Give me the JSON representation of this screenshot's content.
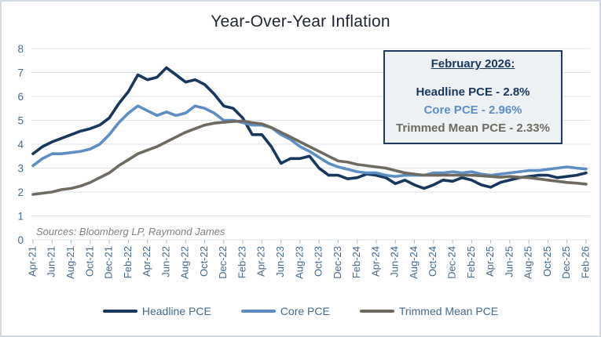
{
  "title": "Year-Over-Year Inflation",
  "sources": "Sources: Bloomberg LP, Raymond James",
  "annotation": {
    "heading": "February 2026:",
    "lines": [
      {
        "label": "Headline PCE - 2.8%",
        "color": "#17375e"
      },
      {
        "label": "Core PCE - 2.96%",
        "color": "#5b8ec4"
      },
      {
        "label": "Trimmed Mean PCE - 2.33%",
        "color": "#6e6a60"
      }
    ]
  },
  "colors": {
    "headline": "#17375e",
    "core": "#5b8ec4",
    "trimmed": "#6e6a60",
    "axis_text": "#44698c",
    "grid": "#dce3ea",
    "tick": "#aebccb",
    "title_text": "#1f2430",
    "sources_text": "#7f7f7f",
    "annotation_border": "#1f3a5f",
    "annotation_bg": "#eef1f3",
    "frame_border": "#d3d9e1"
  },
  "chart_data": {
    "type": "line",
    "title": "Year-Over-Year Inflation",
    "xlabel": "",
    "ylabel": "",
    "ylim": [
      0,
      8
    ],
    "yticks": [
      0,
      1,
      2,
      3,
      4,
      5,
      6,
      7,
      8
    ],
    "grid": true,
    "legend_position": "bottom",
    "x_tick_every": 2,
    "x": [
      "Apr-21",
      "May-21",
      "Jun-21",
      "Jul-21",
      "Aug-21",
      "Sep-21",
      "Oct-21",
      "Nov-21",
      "Dec-21",
      "Jan-22",
      "Feb-22",
      "Mar-22",
      "Apr-22",
      "May-22",
      "Jun-22",
      "Jul-22",
      "Aug-22",
      "Sep-22",
      "Oct-22",
      "Nov-22",
      "Dec-22",
      "Jan-23",
      "Feb-23",
      "Mar-23",
      "Apr-23",
      "May-23",
      "Jun-23",
      "Jul-23",
      "Aug-23",
      "Sep-23",
      "Oct-23",
      "Nov-23",
      "Dec-23",
      "Jan-24",
      "Feb-24",
      "Mar-24",
      "Apr-24",
      "May-24",
      "Jun-24",
      "Jul-24",
      "Aug-24",
      "Sep-24",
      "Oct-24",
      "Nov-24",
      "Dec-24",
      "Jan-25",
      "Feb-25",
      "Mar-25",
      "Apr-25",
      "May-25",
      "Jun-25",
      "Jul-25",
      "Aug-25",
      "Sep-25",
      "Oct-25",
      "Nov-25",
      "Dec-25",
      "Jan-26",
      "Feb-26"
    ],
    "series": [
      {
        "name": "Headline PCE",
        "color": "#17375e",
        "final_value_label": "2.8%",
        "values": [
          3.6,
          3.9,
          4.1,
          4.25,
          4.4,
          4.55,
          4.65,
          4.8,
          5.1,
          5.7,
          6.2,
          6.9,
          6.7,
          6.8,
          7.2,
          6.9,
          6.6,
          6.7,
          6.5,
          6.1,
          5.6,
          5.5,
          5.1,
          4.4,
          4.4,
          3.9,
          3.2,
          3.4,
          3.4,
          3.5,
          3.0,
          2.7,
          2.7,
          2.55,
          2.6,
          2.75,
          2.7,
          2.6,
          2.35,
          2.5,
          2.3,
          2.15,
          2.3,
          2.5,
          2.45,
          2.6,
          2.5,
          2.3,
          2.2,
          2.4,
          2.5,
          2.6,
          2.65,
          2.7,
          2.7,
          2.6,
          2.65,
          2.7,
          2.8
        ]
      },
      {
        "name": "Core PCE",
        "color": "#5b8ec4",
        "final_value_label": "2.96%",
        "values": [
          3.1,
          3.4,
          3.6,
          3.6,
          3.65,
          3.7,
          3.8,
          4.0,
          4.4,
          4.9,
          5.3,
          5.6,
          5.4,
          5.2,
          5.35,
          5.2,
          5.3,
          5.6,
          5.5,
          5.3,
          5.0,
          5.0,
          4.9,
          4.8,
          4.8,
          4.7,
          4.4,
          4.2,
          3.9,
          3.7,
          3.45,
          3.2,
          3.05,
          2.95,
          2.85,
          2.8,
          2.8,
          2.7,
          2.65,
          2.7,
          2.7,
          2.7,
          2.8,
          2.8,
          2.85,
          2.8,
          2.85,
          2.75,
          2.7,
          2.75,
          2.8,
          2.85,
          2.9,
          2.9,
          2.95,
          3.0,
          3.05,
          3.0,
          2.96
        ]
      },
      {
        "name": "Trimmed Mean PCE",
        "color": "#6e6a60",
        "final_value_label": "2.33%",
        "values": [
          1.9,
          1.95,
          2.0,
          2.1,
          2.15,
          2.25,
          2.4,
          2.6,
          2.8,
          3.1,
          3.35,
          3.6,
          3.75,
          3.9,
          4.1,
          4.3,
          4.5,
          4.65,
          4.8,
          4.88,
          4.92,
          4.95,
          4.97,
          4.9,
          4.85,
          4.7,
          4.5,
          4.3,
          4.1,
          3.9,
          3.7,
          3.5,
          3.3,
          3.25,
          3.15,
          3.1,
          3.05,
          3.0,
          2.9,
          2.8,
          2.75,
          2.7,
          2.7,
          2.7,
          2.7,
          2.7,
          2.7,
          2.68,
          2.65,
          2.62,
          2.65,
          2.62,
          2.6,
          2.55,
          2.5,
          2.45,
          2.4,
          2.37,
          2.33
        ]
      }
    ]
  }
}
